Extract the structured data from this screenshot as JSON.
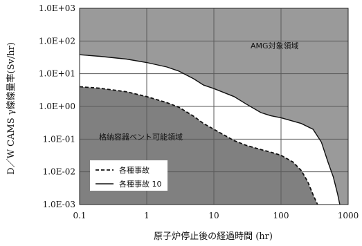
{
  "chart_data": {
    "type": "area",
    "xlabel": "原子炉停止後の経過時間 (hr)",
    "ylabel": "D／W CAMS γ線線量率(Sv/hr)",
    "x_scale": "log",
    "y_scale": "log",
    "xlim": [
      0.1,
      1000
    ],
    "ylim": [
      0.001,
      1000
    ],
    "grid": true,
    "x_ticks": [
      "0.1",
      "1",
      "10",
      "100",
      "1000"
    ],
    "y_ticks": [
      "1.0E-03",
      "1.0E-02",
      "1.0E-01",
      "1.0E+00",
      "1.0E+01",
      "1.0E+02",
      "1.0E+03"
    ],
    "legend_position": "bottom-left",
    "regions": {
      "amg_label": "AMG対象領域",
      "vent_label": "格納容器ベント可能領域"
    },
    "series": [
      {
        "name": "各種事故",
        "style": "dashed",
        "points": [
          [
            0.1,
            4.0
          ],
          [
            0.2,
            3.6
          ],
          [
            0.5,
            2.8
          ],
          [
            1,
            2.0
          ],
          [
            2,
            1.3
          ],
          [
            3,
            0.95
          ],
          [
            5,
            0.5
          ],
          [
            7,
            0.3
          ],
          [
            10,
            0.2
          ],
          [
            20,
            0.09
          ],
          [
            30,
            0.065
          ],
          [
            50,
            0.048
          ],
          [
            70,
            0.04
          ],
          [
            100,
            0.032
          ],
          [
            150,
            0.02
          ],
          [
            200,
            0.011
          ],
          [
            250,
            0.005
          ],
          [
            300,
            0.002
          ],
          [
            350,
            0.001
          ]
        ]
      },
      {
        "name": "各種事故 10",
        "style": "solid",
        "points": [
          [
            0.1,
            38
          ],
          [
            0.2,
            34
          ],
          [
            0.5,
            28
          ],
          [
            1,
            22
          ],
          [
            2,
            16
          ],
          [
            3,
            12
          ],
          [
            5,
            7
          ],
          [
            7,
            4.5
          ],
          [
            10,
            3.5
          ],
          [
            20,
            2.0
          ],
          [
            30,
            1.2
          ],
          [
            50,
            0.65
          ],
          [
            70,
            0.52
          ],
          [
            100,
            0.45
          ],
          [
            200,
            0.3
          ],
          [
            300,
            0.2
          ],
          [
            400,
            0.08
          ],
          [
            500,
            0.02
          ],
          [
            600,
            0.007
          ],
          [
            700,
            0.002
          ],
          [
            750,
            0.001
          ]
        ]
      }
    ],
    "colors": {
      "amg_region": "#9a9a9a",
      "mid_region": "#ffffff",
      "vent_region": "#808080"
    }
  }
}
